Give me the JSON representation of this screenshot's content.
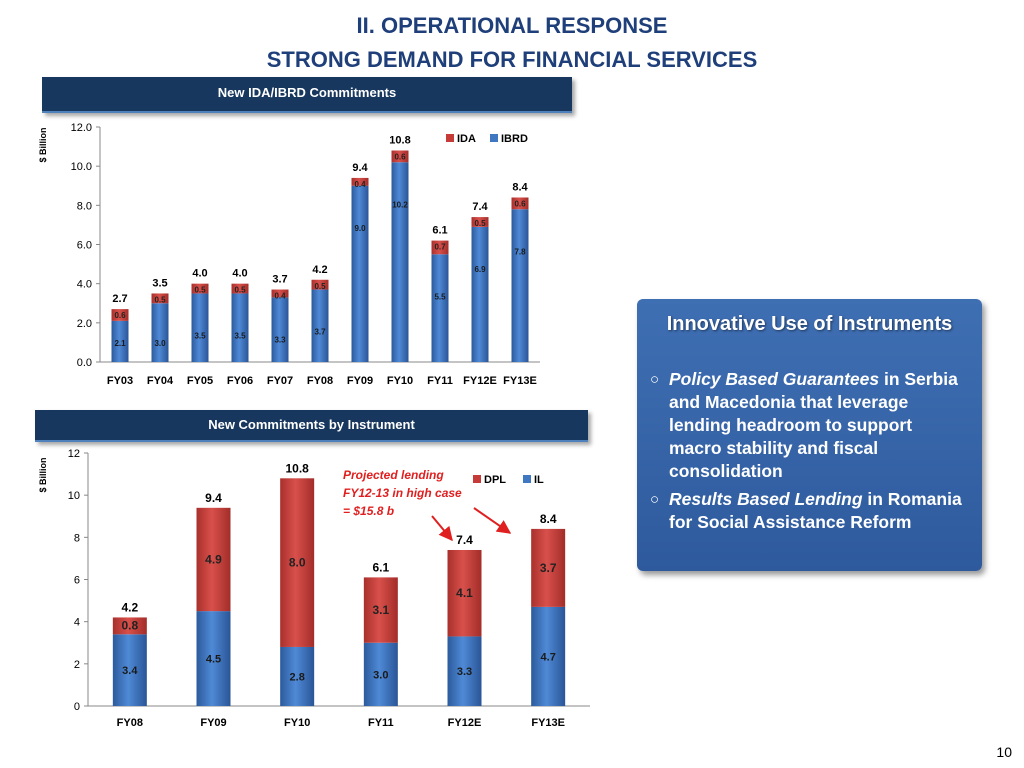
{
  "page": {
    "title_line1": "II. OPERATIONAL RESPONSE",
    "title_line2": "STRONG DEMAND FOR FINANCIAL SERVICES",
    "page_number": "10"
  },
  "callout": {
    "title": "Innovative Use of Instruments",
    "bullet1_emph": "Policy Based Guarantees",
    "bullet1_rest": " in Serbia and Macedonia that leverage lending headroom to support macro stability and fiscal consolidation",
    "bullet2_emph": "Results Based Lending",
    "bullet2_rest": " in Romania for Social Assistance Reform"
  },
  "colors": {
    "blue": "#3f77c0",
    "red": "#c63b38",
    "navy": "#17375e"
  },
  "chart_data": [
    {
      "type": "bar",
      "title": "New IDA/IBRD Commitments",
      "ylabel": "$ Billion",
      "ylim": [
        0,
        12
      ],
      "yticks": [
        "0.0",
        "2.0",
        "4.0",
        "6.0",
        "8.0",
        "10.0",
        "12.0"
      ],
      "categories": [
        "FY03",
        "FY04",
        "FY05",
        "FY06",
        "FY07",
        "FY08",
        "FY09",
        "FY10",
        "FY11",
        "FY12E",
        "FY13E"
      ],
      "series": [
        {
          "name": "IBRD",
          "values": [
            2.1,
            3.0,
            3.5,
            3.5,
            3.3,
            3.7,
            9.0,
            10.2,
            5.5,
            6.9,
            7.8
          ],
          "labels": [
            "2.1",
            "3.0",
            "3.5",
            "3.5",
            "3.3",
            "3.7",
            "9.0",
            "10.2",
            "5.5",
            "6.9",
            "7.8"
          ]
        },
        {
          "name": "IDA",
          "values": [
            0.6,
            0.5,
            0.5,
            0.5,
            0.4,
            0.5,
            0.4,
            0.6,
            0.7,
            0.5,
            0.6
          ],
          "labels": [
            "0.6",
            "0.5",
            "0.5",
            "0.5",
            "0.4",
            "0.5",
            "0.4",
            "0.6",
            "0.7",
            "0.5",
            "0.6"
          ]
        }
      ],
      "totals": [
        "2.7",
        "3.5",
        "4.0",
        "4.0",
        "3.7",
        "4.2",
        "9.4",
        "10.8",
        "6.1",
        "7.4",
        "8.4"
      ],
      "legend": "top-right",
      "grid": false
    },
    {
      "type": "bar",
      "title": "New Commitments by Instrument",
      "ylabel": "$ Billion",
      "ylim": [
        0,
        12
      ],
      "yticks": [
        "0",
        "2",
        "4",
        "6",
        "8",
        "10",
        "12"
      ],
      "categories": [
        "FY08",
        "FY09",
        "FY10",
        "FY11",
        "FY12E",
        "FY13E"
      ],
      "series": [
        {
          "name": "IL",
          "values": [
            3.4,
            4.5,
            2.8,
            3.0,
            3.3,
            4.7
          ],
          "labels": [
            "3.4",
            "4.5",
            "2.8",
            "3.0",
            "3.3",
            "4.7"
          ]
        },
        {
          "name": "DPL",
          "values": [
            0.8,
            4.9,
            8.0,
            3.1,
            4.1,
            3.7
          ],
          "labels": [
            "0.8",
            "4.9",
            "8.0",
            "3.1",
            "4.1",
            "3.7"
          ]
        }
      ],
      "totals": [
        "4.2",
        "9.4",
        "10.8",
        "6.1",
        "7.4",
        "8.4"
      ],
      "annotation": [
        "Projected lending",
        "FY12-13 in high case",
        "= $15.8 b"
      ],
      "legend": "top-right",
      "grid": false
    }
  ]
}
